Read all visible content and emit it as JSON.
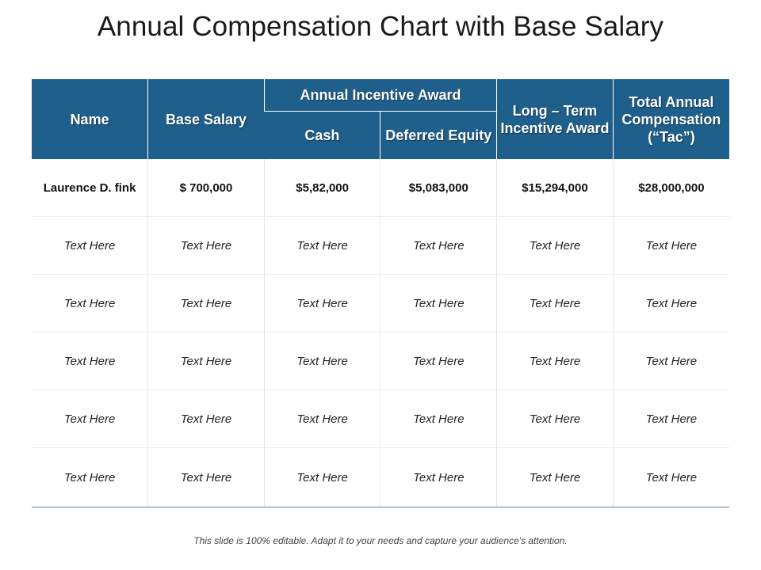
{
  "title": "Annual Compensation Chart with Base Salary",
  "columns": {
    "name": "Name",
    "base_salary": "Base Salary",
    "annual_incentive_award": "Annual Incentive Award",
    "cash": "Cash",
    "deferred_equity": "Deferred Equity",
    "long_term_incentive": "Long – Term Incentive Award",
    "total_annual": "Total Annual Compensation (“Tac”)"
  },
  "rows": [
    [
      "Laurence D. fink",
      "$ 700,000",
      "$5,82,000",
      "$5,083,000",
      "$15,294,000",
      "$28,000,000"
    ],
    [
      "Text Here",
      "Text Here",
      "Text Here",
      "Text Here",
      "Text Here",
      "Text Here"
    ],
    [
      "Text Here",
      "Text Here",
      "Text Here",
      "Text Here",
      "Text Here",
      "Text Here"
    ],
    [
      "Text Here",
      "Text Here",
      "Text Here",
      "Text Here",
      "Text Here",
      "Text Here"
    ],
    [
      "Text Here",
      "Text Here",
      "Text Here",
      "Text Here",
      "Text Here",
      "Text Here"
    ],
    [
      "Text Here",
      "Text Here",
      "Text Here",
      "Text Here",
      "Text Here",
      "Text Here"
    ]
  ],
  "footer": "This slide is 100% editable. Adapt it to your needs and capture your audience's attention.",
  "colors": {
    "header_bg": "#1f5f8b",
    "bottom_rule": "#5b86a6"
  }
}
